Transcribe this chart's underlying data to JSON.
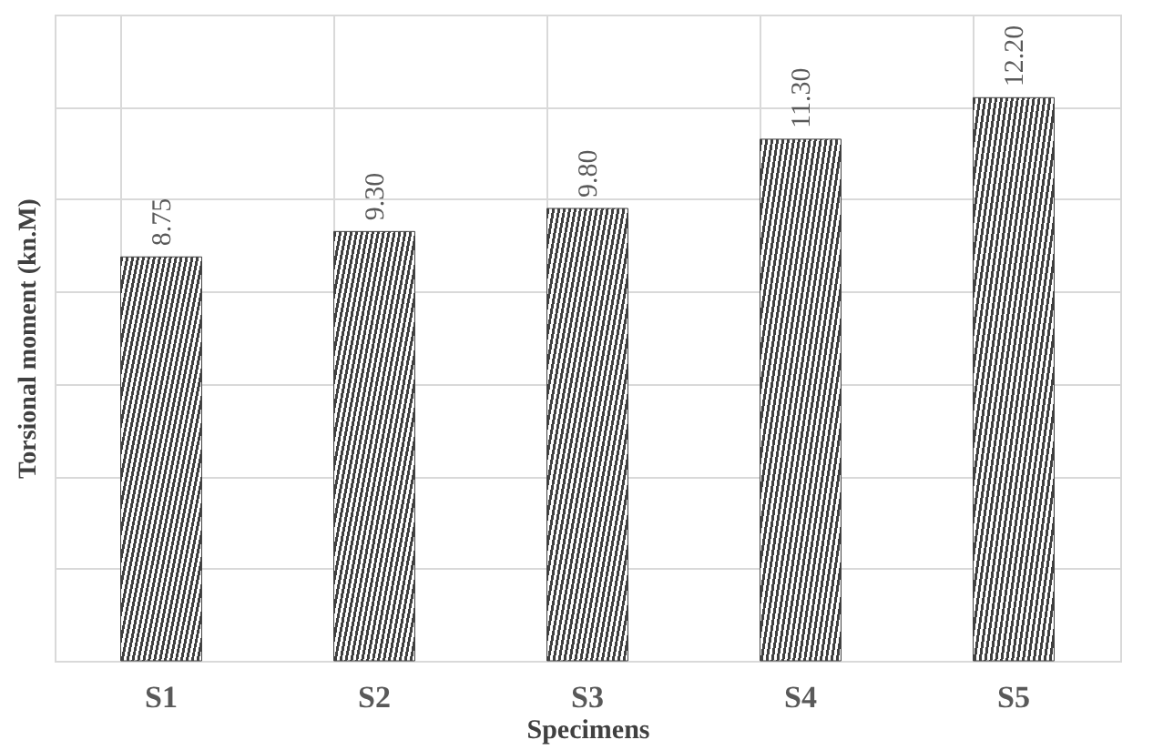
{
  "chart_data": {
    "type": "bar",
    "xlabel": "Specimens",
    "ylabel": "Torsional moment  (kn.M)",
    "categories": [
      "S1",
      "S2",
      "S3",
      "S4",
      "S5"
    ],
    "values": [
      8.75,
      9.3,
      9.8,
      11.3,
      12.2
    ],
    "value_labels": [
      "8.75",
      "9.30",
      "9.80",
      "11.30",
      "12.20"
    ],
    "color": "#404040",
    "ylim": [
      0,
      14
    ],
    "yticks": [
      {
        "value": 0,
        "label": null
      },
      {
        "value": 2,
        "label": null
      },
      {
        "value": 4,
        "label": null
      },
      {
        "value": 6,
        "label": null
      },
      {
        "value": 8,
        "label": null
      },
      {
        "value": 10,
        "label": null
      },
      {
        "value": 12,
        "label": null
      },
      {
        "value": 14,
        "label": null
      }
    ],
    "tick_labels": "x",
    "grid": true
  }
}
